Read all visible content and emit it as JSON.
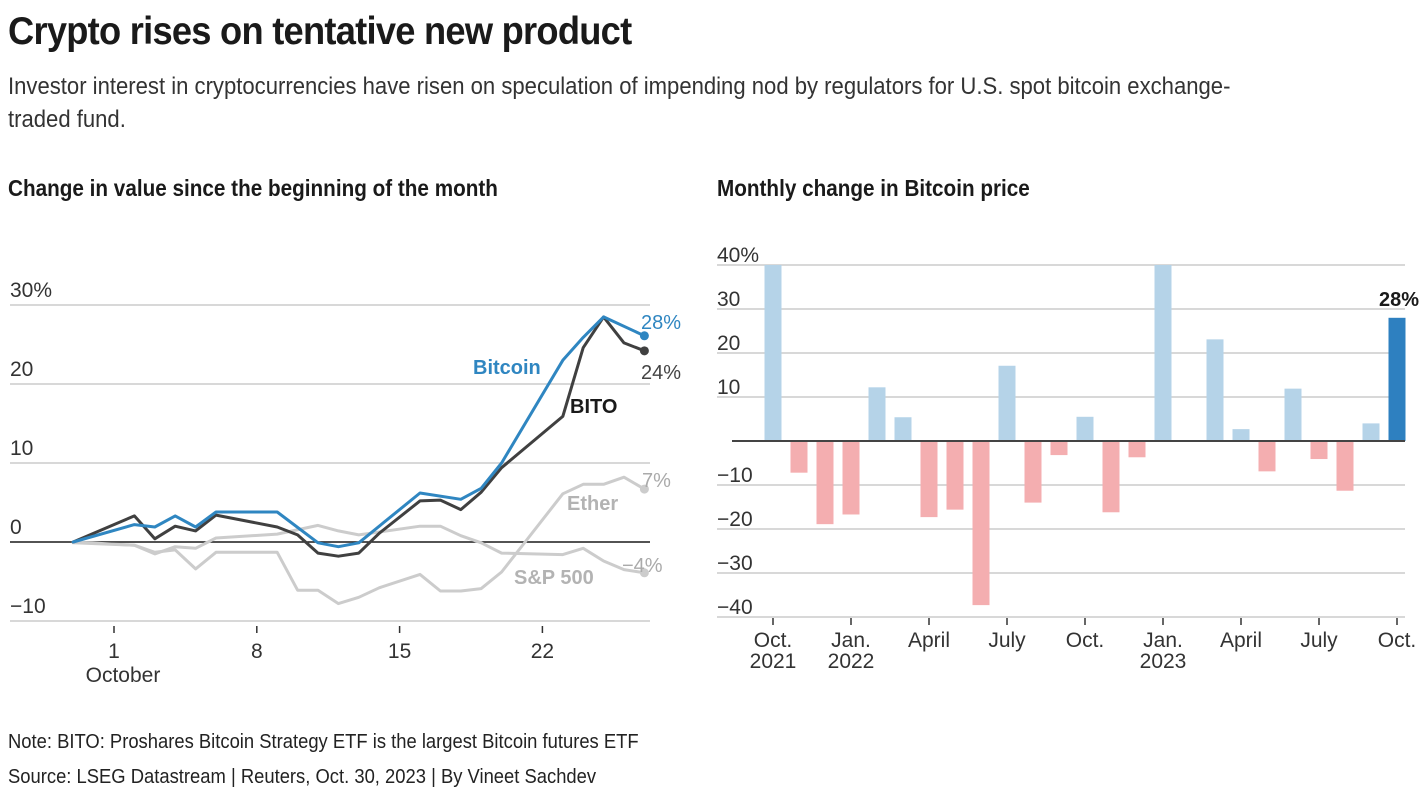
{
  "header": {
    "title": "Crypto rises on tentative new product",
    "subtitle": "Investor interest in cryptocurrencies have risen on speculation of impending nod by regulators for U.S. spot bitcoin exchange-traded fund."
  },
  "colors": {
    "bitcoin": "#2f86c1",
    "bito": "#404040",
    "ether": "#cccccc",
    "sp500": "#cccccc",
    "ether_label": "#b3b3b3",
    "bar_positive": "#b5d3e8",
    "bar_negative": "#f4aeb0",
    "bar_highlight": "#2e80c0",
    "gridline": "#cccccc",
    "zero_line": "#1a1a1a"
  },
  "chart_data": [
    {
      "type": "line",
      "title": "Change in value since the beginning of the month",
      "xlabel": "",
      "ylabel": "",
      "x_unit": "day of October 2023",
      "xlim": [
        -2,
        29
      ],
      "ylim": [
        -10,
        30
      ],
      "yticks": [
        -10,
        0,
        10,
        20,
        30
      ],
      "ytick_labels": [
        "−10",
        "0",
        "10",
        "20",
        "30%"
      ],
      "xticks": [
        1,
        8,
        15,
        22
      ],
      "xtick_labels": [
        "1",
        "8",
        "15",
        "22"
      ],
      "xtick_sublabel": "October",
      "grid": true,
      "legend": "inline-labels",
      "series": [
        {
          "name": "Bitcoin",
          "end_label": "28%",
          "points": [
            [
              -1,
              0
            ],
            [
              2,
              2.2
            ],
            [
              3,
              1.9
            ],
            [
              4,
              3.3
            ],
            [
              5,
              1.9
            ],
            [
              6,
              3.8
            ],
            [
              9,
              3.8
            ],
            [
              11,
              -0.1
            ],
            [
              12,
              -0.6
            ],
            [
              13,
              -0.1
            ],
            [
              16,
              6.2
            ],
            [
              18,
              5.4
            ],
            [
              19,
              6.8
            ],
            [
              20,
              10.0
            ],
            [
              23,
              23.0
            ],
            [
              24,
              25.9
            ],
            [
              25,
              28.5
            ],
            [
              27,
              26.1
            ]
          ]
        },
        {
          "name": "BITO",
          "end_label": "24%",
          "points": [
            [
              -1,
              0
            ],
            [
              2,
              3.3
            ],
            [
              3,
              0.4
            ],
            [
              4,
              2.0
            ],
            [
              5,
              1.4
            ],
            [
              6,
              3.4
            ],
            [
              9,
              1.9
            ],
            [
              10,
              0.9
            ],
            [
              11,
              -1.4
            ],
            [
              12,
              -1.8
            ],
            [
              13,
              -1.4
            ],
            [
              14,
              1.1
            ],
            [
              16,
              5.2
            ],
            [
              17,
              5.3
            ],
            [
              18,
              4.1
            ],
            [
              19,
              6.3
            ],
            [
              20,
              9.4
            ],
            [
              23,
              15.9
            ],
            [
              24,
              24.6
            ],
            [
              25,
              28.5
            ],
            [
              26,
              25.2
            ],
            [
              27,
              24.2
            ]
          ]
        },
        {
          "name": "Ether",
          "end_label": "7%",
          "points": [
            [
              -1,
              0
            ],
            [
              2,
              -0.4
            ],
            [
              3,
              -1.3
            ],
            [
              4,
              -1.0
            ],
            [
              5,
              -3.4
            ],
            [
              6,
              -1.3
            ],
            [
              9,
              -1.3
            ],
            [
              10,
              -6.1
            ],
            [
              11,
              -6.1
            ],
            [
              12,
              -7.8
            ],
            [
              13,
              -7.0
            ],
            [
              14,
              -5.8
            ],
            [
              16,
              -4.1
            ],
            [
              17,
              -6.2
            ],
            [
              18,
              -6.2
            ],
            [
              19,
              -5.9
            ],
            [
              20,
              -3.8
            ],
            [
              21,
              -0.5
            ],
            [
              23,
              6.1
            ],
            [
              24,
              7.3
            ],
            [
              25,
              7.3
            ],
            [
              26,
              8.2
            ],
            [
              27,
              6.7
            ]
          ]
        },
        {
          "name": "S&P 500",
          "end_label": "−4%",
          "points": [
            [
              -1,
              -0.1
            ],
            [
              2,
              -0.4
            ],
            [
              3,
              -1.5
            ],
            [
              4,
              -0.6
            ],
            [
              5,
              -0.8
            ],
            [
              6,
              0.5
            ],
            [
              9,
              1.0
            ],
            [
              11,
              2.1
            ],
            [
              12,
              1.4
            ],
            [
              13,
              0.9
            ],
            [
              16,
              2.0
            ],
            [
              17,
              2.0
            ],
            [
              18,
              0.8
            ],
            [
              19,
              -0.1
            ],
            [
              20,
              -1.4
            ],
            [
              23,
              -1.6
            ],
            [
              24,
              -0.8
            ],
            [
              25,
              -2.4
            ],
            [
              26,
              -3.5
            ],
            [
              27,
              -3.9
            ]
          ]
        }
      ]
    },
    {
      "type": "bar",
      "title": "Monthly change in Bitcoin price",
      "xlabel": "",
      "ylabel": "",
      "ylim": [
        -40,
        40
      ],
      "yticks": [
        -40,
        -30,
        -20,
        -10,
        0,
        10,
        20,
        30,
        40
      ],
      "ytick_labels": [
        "−40",
        "−30",
        "−20",
        "−10",
        "",
        "10",
        "20",
        "30",
        "40%"
      ],
      "grid": true,
      "categories": [
        "Oct 2021",
        "Nov 2021",
        "Dec 2021",
        "Jan 2022",
        "Feb 2022",
        "Mar 2022",
        "Apr 2022",
        "May 2022",
        "Jun 2022",
        "Jul 2022",
        "Aug 2022",
        "Sep 2022",
        "Oct 2022",
        "Nov 2022",
        "Dec 2022",
        "Jan 2023",
        "Feb 2023",
        "Mar 2023",
        "Apr 2023",
        "May 2023",
        "Jun 2023",
        "Jul 2023",
        "Aug 2023",
        "Sep 2023",
        "Oct 2023"
      ],
      "values": [
        40,
        -7.2,
        -18.9,
        -16.7,
        12.2,
        5.4,
        -17.3,
        -15.6,
        -37.3,
        17.1,
        -14.0,
        -3.2,
        5.5,
        -16.2,
        -3.7,
        40,
        0,
        23.1,
        2.7,
        -6.9,
        11.9,
        -4.1,
        -11.3,
        4.0,
        28.0
      ],
      "highlight_index": 24,
      "highlight_label": "28%",
      "xtick_indices": [
        0,
        3,
        6,
        9,
        12,
        15,
        18,
        21,
        24
      ],
      "xtick_labels": [
        [
          "Oct.",
          "2021"
        ],
        [
          "Jan.",
          "2022"
        ],
        [
          "April",
          ""
        ],
        [
          "July",
          ""
        ],
        [
          "Oct.",
          ""
        ],
        [
          "Jan.",
          "2023"
        ],
        [
          "April",
          ""
        ],
        [
          "July",
          ""
        ],
        [
          "Oct.",
          ""
        ]
      ]
    }
  ],
  "footer": {
    "note": "Note: BITO: Proshares Bitcoin Strategy ETF is the largest Bitcoin futures ETF",
    "source": "Source: LSEG Datastream | Reuters, Oct. 30, 2023 | By Vineet Sachdev"
  }
}
